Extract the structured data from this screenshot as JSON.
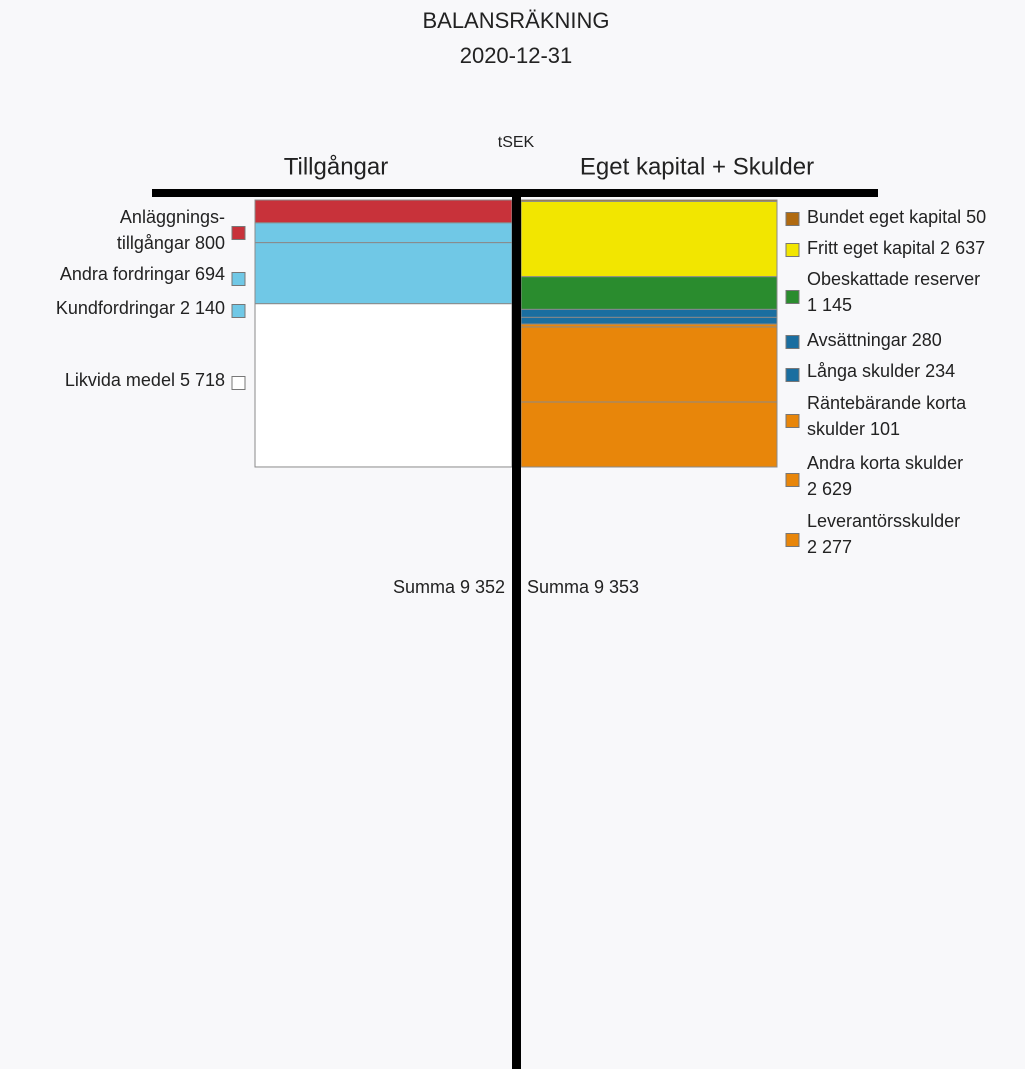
{
  "chart_data": {
    "type": "balance",
    "title": "BALANSRÄKNING",
    "subtitle": "2020-12-31",
    "unit": "tSEK",
    "left": {
      "heading": "Tillgångar",
      "total": 9352,
      "total_label": "Summa 9 352",
      "items": [
        {
          "label": [
            "Anläggnings-",
            "tillgångar  800"
          ],
          "value": 800,
          "color": "#c8323a"
        },
        {
          "label": [
            "Andra fordringar 694"
          ],
          "value": 694,
          "color": "#70c8e6"
        },
        {
          "label": [
            "Kundfordringar 2 140"
          ],
          "value": 2140,
          "color": "#70c8e6"
        },
        {
          "label": [
            "Likvida medel 5 718"
          ],
          "value": 5718,
          "color": "#ffffff"
        }
      ]
    },
    "right": {
      "heading": "Eget kapital + Skulder",
      "total": 9353,
      "total_label": "Summa 9 353",
      "items": [
        {
          "label": [
            "Bundet eget kapital 50"
          ],
          "value": 50,
          "color": "#b06a10"
        },
        {
          "label": [
            "Fritt eget kapital 2 637"
          ],
          "value": 2637,
          "color": "#f2e600"
        },
        {
          "label": [
            "Obeskattade reserver",
            "1 145"
          ],
          "value": 1145,
          "color": "#2a8c2e"
        },
        {
          "label": [
            "Avsättningar 280"
          ],
          "value": 280,
          "color": "#1a6ea0"
        },
        {
          "label": [
            "Långa skulder 234"
          ],
          "value": 234,
          "color": "#1a6ea0"
        },
        {
          "label": [
            "Räntebärande korta",
            "skulder 101"
          ],
          "value": 101,
          "color": "#e8860a"
        },
        {
          "label": [
            "Andra korta skulder",
            "2 629"
          ],
          "value": 2629,
          "color": "#e8860a"
        },
        {
          "label": [
            "Leverantörsskulder",
            "2 277"
          ],
          "value": 2277,
          "color": "#e8860a"
        }
      ]
    }
  }
}
